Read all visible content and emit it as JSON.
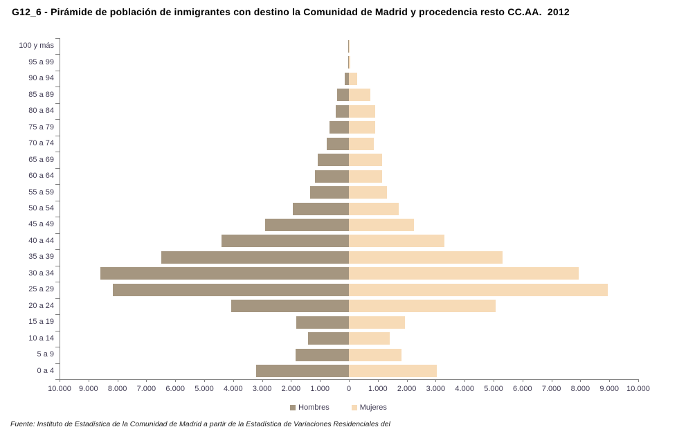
{
  "title": "G12_6 - Pirámide de población de inmigrantes con destino la Comunidad de Madrid y procedencia resto CC.AA.  2012",
  "footer": "Fuente: Instituto de Estadística de la Comunidad de Madrid a partir de la Estadística de Variaciones Residenciales del",
  "legend": {
    "hombres": "Hombres",
    "mujeres": "Mujeres"
  },
  "colors": {
    "hombres_bar": "#A59680",
    "mujeres_bar": "#F7DBB7",
    "axis": "#808080",
    "tick_label": "#3F3A52"
  },
  "chart_data": {
    "type": "bar",
    "subtype": "population-pyramid",
    "title": "G12_6 - Pirámide de población de inmigrantes con destino la Comunidad de Madrid y procedencia resto CC.AA.  2012",
    "xlabel": "",
    "ylabel": "",
    "grid": false,
    "legend_position": "bottom",
    "x_range_abs": [
      0,
      10000
    ],
    "x_tick_step": 1000,
    "x_tick_labels": [
      "10.000",
      "9.000",
      "8.000",
      "7.000",
      "6.000",
      "5.000",
      "4.000",
      "3.000",
      "2.000",
      "1.000",
      "0",
      "1.000",
      "2.000",
      "3.000",
      "4.000",
      "5.000",
      "6.000",
      "7.000",
      "8.000",
      "9.000",
      "10.000"
    ],
    "categories_top_down": [
      "100 y más",
      "95 a 99",
      "90 a 94",
      "85 a 89",
      "80 a 84",
      "75 a 79",
      "70 a 74",
      "65 a 69",
      "60 a 64",
      "55 a 59",
      "50 a 54",
      "45 a 49",
      "40 a 44",
      "35 a 39",
      "30 a 34",
      "25 a 29",
      "20 a 24",
      "15 a 19",
      "10 a 14",
      "5 a 9",
      "0 a 4"
    ],
    "series": [
      {
        "name": "Hombres",
        "side": "left",
        "values": [
          10,
          20,
          150,
          400,
          460,
          660,
          760,
          1080,
          1175,
          1330,
          1930,
          2900,
          4400,
          6480,
          8580,
          8150,
          4060,
          1815,
          1415,
          1840,
          3210
        ]
      },
      {
        "name": "Mujeres",
        "side": "right",
        "values": [
          15,
          50,
          280,
          750,
          910,
          900,
          860,
          1150,
          1140,
          1320,
          1720,
          2250,
          3290,
          5320,
          7950,
          8940,
          5060,
          1945,
          1400,
          1820,
          3040
        ]
      }
    ]
  }
}
